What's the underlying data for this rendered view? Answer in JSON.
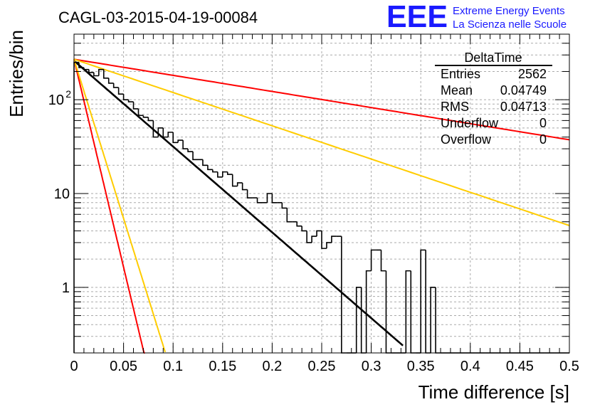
{
  "chart_data": {
    "type": "histogram",
    "title": "CAGL-03-2015-04-19-00084",
    "xlabel": "Time difference [s]",
    "ylabel": "Entries/bin",
    "x_range": [
      0,
      0.5
    ],
    "y_range": [
      0.2,
      500
    ],
    "y_scale": "log",
    "grid": true,
    "x_ticks": [
      {
        "v": 0,
        "label": "0"
      },
      {
        "v": 0.05,
        "label": "0.05"
      },
      {
        "v": 0.1,
        "label": "0.1"
      },
      {
        "v": 0.15,
        "label": "0.15"
      },
      {
        "v": 0.2,
        "label": "0.2"
      },
      {
        "v": 0.25,
        "label": "0.25"
      },
      {
        "v": 0.3,
        "label": "0.3"
      },
      {
        "v": 0.35,
        "label": "0.35"
      },
      {
        "v": 0.4,
        "label": "0.4"
      },
      {
        "v": 0.45,
        "label": "0.45"
      },
      {
        "v": 0.5,
        "label": "0.5"
      }
    ],
    "y_ticks": [
      {
        "v": 1,
        "label": "1"
      },
      {
        "v": 10,
        "label": "10"
      },
      {
        "v": 100,
        "label": "10",
        "sup": "2"
      }
    ],
    "bin_width": 0.005,
    "histogram": {
      "name": "DeltaTime",
      "color": "#000000",
      "bin_edges_start": 0,
      "counts": [
        250,
        220,
        210,
        195,
        180,
        210,
        170,
        150,
        135,
        115,
        100,
        95,
        80,
        68,
        65,
        60,
        40,
        50,
        40,
        45,
        35,
        37,
        30,
        28,
        23,
        23,
        20,
        18,
        17,
        15,
        17,
        16,
        12,
        13,
        11,
        9,
        9,
        8,
        8,
        10,
        8,
        8,
        7,
        5,
        5,
        4.5,
        4.0,
        3.0,
        3.5,
        4.0,
        2.6,
        3.0,
        3.5,
        3.5,
        0,
        0,
        0,
        1.0,
        0,
        1.5,
        2.5,
        2.5,
        1.5,
        0,
        0,
        0,
        0,
        1.5,
        0,
        0,
        2.5,
        0,
        1.0,
        0,
        0,
        0,
        0,
        0,
        0,
        0,
        0,
        0,
        0,
        0,
        0,
        0,
        0,
        0,
        0,
        0,
        0,
        0,
        0,
        0,
        0,
        0,
        0,
        0,
        0,
        0
      ]
    },
    "curves": [
      {
        "name": "fit",
        "color": "#000000",
        "y0": 260,
        "tau": 0.0475,
        "x_start": 0,
        "x_end": 0.332
      },
      {
        "name": "",
        "color": "#ff0000",
        "y0": 270,
        "tau": 0.253,
        "x_start": 0,
        "x_end": 0.5
      },
      {
        "name": "",
        "color": "#ff0000",
        "y0": 270,
        "tau": 0.0098,
        "x_start": 0,
        "x_end": 0.0715
      },
      {
        "name": "",
        "color": "#ffcc00",
        "y0": 270,
        "tau": 0.1225,
        "x_start": 0,
        "x_end": 0.5
      },
      {
        "name": "",
        "color": "#ffcc00",
        "y0": 270,
        "tau": 0.0128,
        "x_start": 0,
        "x_end": 0.092
      }
    ],
    "stats_box": {
      "title": "DeltaTime",
      "rows": [
        {
          "label": "Entries",
          "value": "2562"
        },
        {
          "label": "Mean",
          "value": "0.04749"
        },
        {
          "label": "RMS",
          "value": "0.04713"
        },
        {
          "label": "Underflow",
          "value": "0"
        },
        {
          "label": "Overflow",
          "value": "0"
        }
      ]
    }
  },
  "logo": {
    "mark": "EEE",
    "line1": "Extreme Energy Events",
    "line2": "La Scienza nelle Scuole",
    "color": "#1a1aff"
  }
}
